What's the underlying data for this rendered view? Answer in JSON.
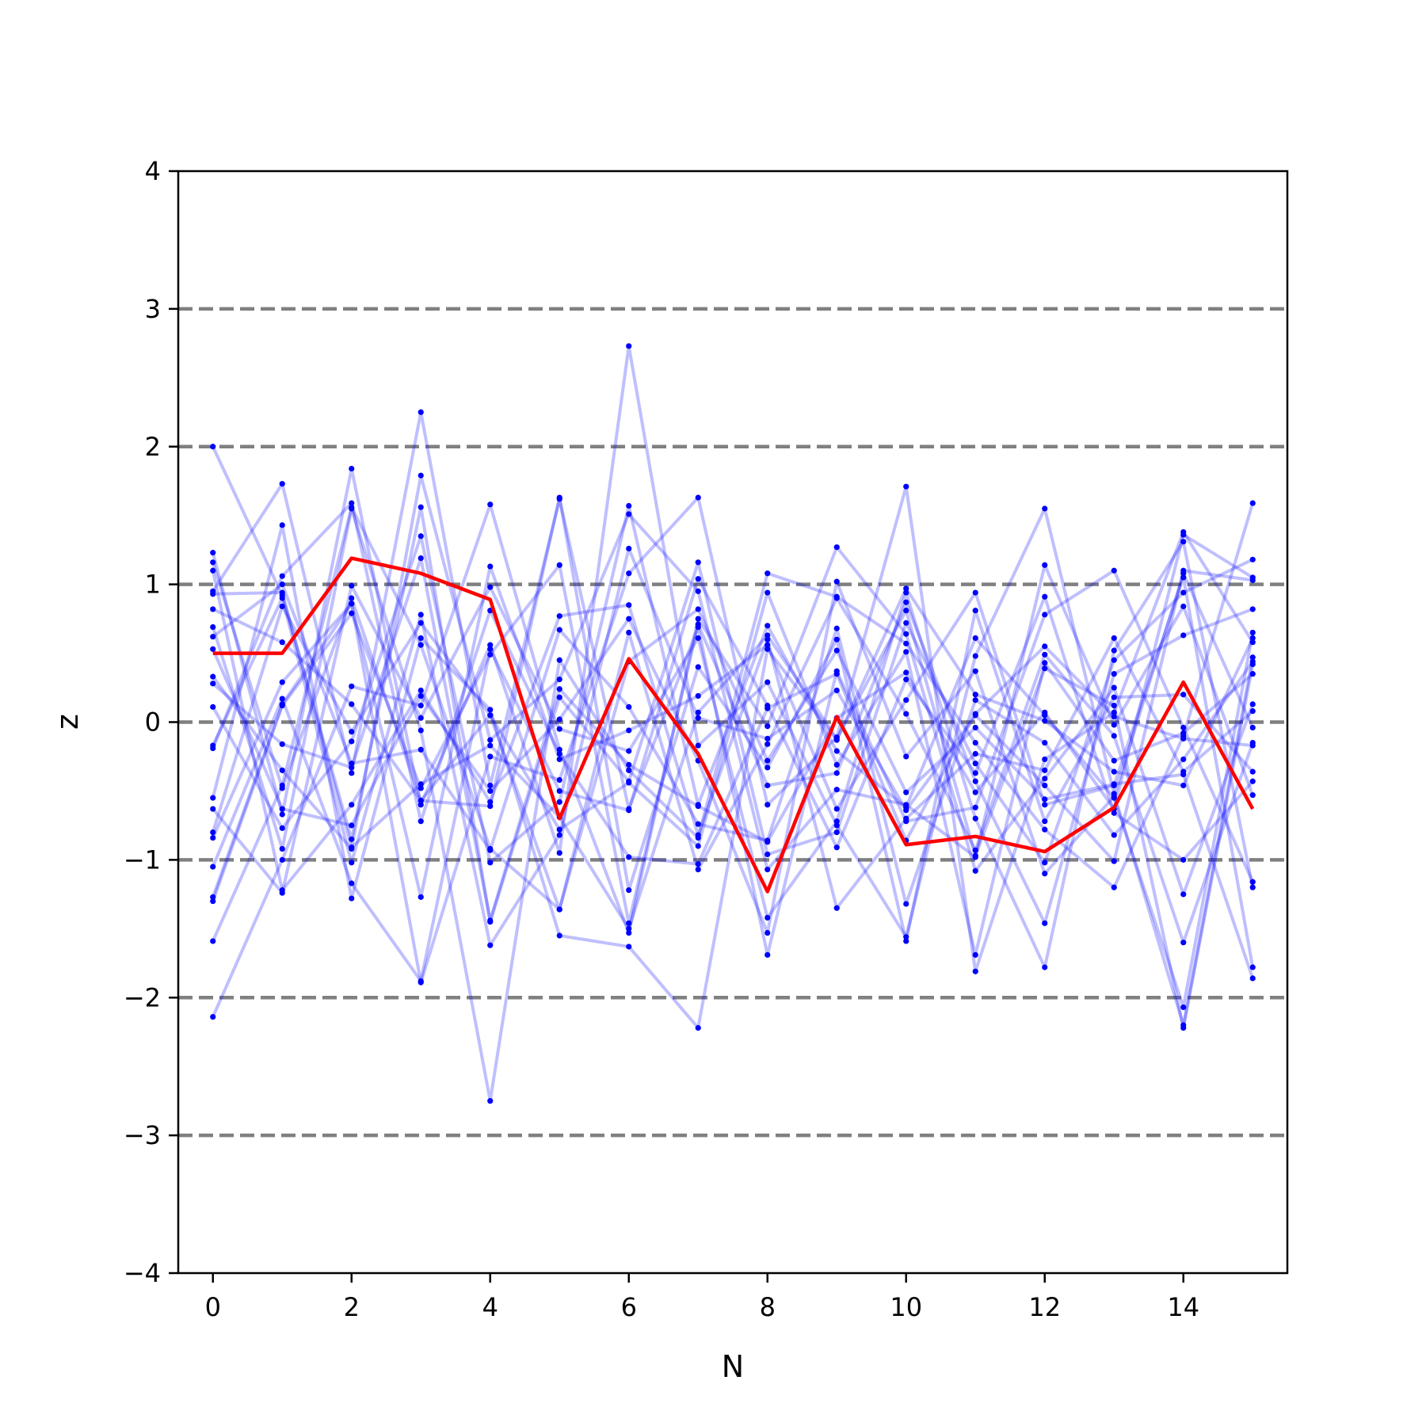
{
  "chart_data": {
    "type": "line",
    "xlabel": "N",
    "ylabel": "z",
    "xlim": [
      -0.5,
      15.5
    ],
    "ylim": [
      -4,
      4
    ],
    "x_ticks": [
      0,
      2,
      4,
      6,
      8,
      10,
      12,
      14
    ],
    "y_ticks": [
      -4,
      -3,
      -2,
      -1,
      0,
      1,
      2,
      3,
      4
    ],
    "y_tick_labels": [
      "−4",
      "−3",
      "−2",
      "−1",
      "0",
      "1",
      "2",
      "3",
      "4"
    ],
    "reference_lines": [
      -3,
      -2,
      -1,
      0,
      1,
      2,
      3
    ],
    "colors": {
      "samples": "#0000ff",
      "highlight": "#ff0000",
      "reference": "#808080"
    },
    "x": [
      0,
      1,
      2,
      3,
      4,
      5,
      6,
      7,
      8,
      9,
      10,
      11,
      12,
      13,
      14,
      15
    ],
    "highlight": [
      0.5,
      0.5,
      1.19,
      1.08,
      0.89,
      -0.7,
      0.46,
      -0.23,
      -1.23,
      0.04,
      -0.89,
      -0.83,
      -0.94,
      -0.62,
      0.29,
      -0.63
    ],
    "series": [
      {
        "values": [
          2.0,
          0.92,
          -0.85,
          1.56,
          -1.45,
          0.18,
          -0.43,
          1.16,
          -0.96,
          -0.8,
          0.72,
          -0.3,
          -1.02,
          0.45,
          0.94,
          1.18
        ]
      },
      {
        "values": [
          1.23,
          -0.67,
          1.84,
          -0.6,
          0.56,
          -0.95,
          2.73,
          -0.17,
          0.29,
          -0.75,
          -1.56,
          0.48,
          1.55,
          -0.52,
          -2.2,
          0.47
        ]
      },
      {
        "values": [
          -2.14,
          -1.0,
          0.26,
          0.12,
          1.58,
          -0.2,
          -1.53,
          0.75,
          -0.03,
          1.27,
          0.64,
          -1.08,
          -0.41,
          0.25,
          -1.25,
          0.13
        ]
      },
      {
        "values": [
          0.95,
          1.73,
          -0.37,
          2.25,
          -0.46,
          1.62,
          -0.63,
          0.69,
          -1.69,
          0.37,
          -0.72,
          -0.62,
          0.78,
          1.1,
          -0.04,
          -1.16
        ]
      },
      {
        "values": [
          -1.27,
          0.13,
          0.86,
          -1.89,
          -0.25,
          -0.42,
          1.08,
          1.63,
          -0.6,
          -0.11,
          1.71,
          -1.81,
          -0.27,
          0.07,
          1.38,
          0.58
        ]
      },
      {
        "values": [
          0.69,
          -0.92,
          1.55,
          -0.06,
          -2.75,
          0.45,
          -0.35,
          -0.84,
          1.08,
          0.91,
          0.57,
          -0.15,
          -0.78,
          -1.2,
          -0.1,
          1.59
        ]
      },
      {
        "values": [
          -0.55,
          1.43,
          -1.28,
          0.61,
          0.09,
          -1.55,
          -1.63,
          -2.22,
          0.53,
          -0.13,
          0.97,
          0.2,
          0.01,
          -0.36,
          -0.46,
          0.61
        ]
      },
      {
        "values": [
          0.33,
          -0.35,
          -0.92,
          1.79,
          -0.13,
          0.31,
          1.51,
          0.95,
          -1.07,
          -0.49,
          -0.6,
          -0.98,
          1.14,
          -0.02,
          0.84,
          -0.53
        ]
      },
      {
        "values": [
          -0.84,
          0.29,
          0.86,
          -1.27,
          1.13,
          -0.27,
          -0.06,
          0.19,
          0.56,
          -0.63,
          0.16,
          0.94,
          -0.6,
          -0.46,
          1.05,
          -1.78
        ]
      },
      {
        "values": [
          1.1,
          -1.22,
          -0.6,
          0.23,
          -0.58,
          0.77,
          0.85,
          -0.82,
          0.6,
          -1.35,
          -0.7,
          -0.23,
          -0.35,
          0.61,
          -0.36,
          0.08
        ]
      },
      {
        "values": [
          -0.17,
          0.9,
          -1.02,
          0.78,
          -1.62,
          -0.82,
          1.26,
          0.03,
          -0.12,
          0.23,
          -0.64,
          0.05,
          -0.46,
          -1.01,
          1.1,
          1.03
        ]
      },
      {
        "values": [
          0.82,
          0.58,
          0.13,
          -0.57,
          0.05,
          -1.36,
          0.65,
          -1.07,
          -0.16,
          0.9,
          0.06,
          -0.93,
          0.49,
          -0.1,
          -1.6,
          -0.15
        ]
      },
      {
        "values": [
          -1.3,
          0.12,
          0.79,
          -0.48,
          0.49,
          1.14,
          -1.46,
          0.71,
          -0.46,
          -0.37,
          0.87,
          -0.43,
          -1.46,
          0.35,
          0.63,
          0.82
        ]
      },
      {
        "values": [
          0.11,
          -0.77,
          -0.14,
          1.35,
          -1.02,
          -0.58,
          1.57,
          -0.6,
          0.7,
          -0.21,
          -0.62,
          0.61,
          0.05,
          -0.55,
          -2.07,
          0.65
        ]
      },
      {
        "values": [
          -0.63,
          -1.24,
          0.99,
          0.03,
          0.98,
          -0.05,
          -0.21,
          0.61,
          -1.42,
          -0.72,
          0.94,
          -0.7,
          -1.78,
          0.52,
          1.31,
          -1.2
        ]
      },
      {
        "values": [
          0.62,
          1.0,
          -0.3,
          -0.2,
          -0.93,
          0.67,
          0.11,
          -0.74,
          -0.86,
          0.68,
          -1.32,
          0.16,
          -0.15,
          -0.82,
          -0.27,
          0.44
        ]
      },
      {
        "values": [
          -1.05,
          0.17,
          -1.17,
          -1.88,
          0.53,
          -0.5,
          -0.64,
          1.04,
          0.12,
          -0.91,
          0.31,
          -0.37,
          0.91,
          -0.66,
          -1.0,
          -0.43
        ]
      },
      {
        "values": [
          1.16,
          -0.48,
          0.9,
          -0.57,
          -0.61,
          1.63,
          -1.22,
          0.4,
          -0.33,
          0.6,
          -1.59,
          0.81,
          -0.72,
          0.18,
          0.2,
          -0.36
        ]
      },
      {
        "values": [
          -0.8,
          0.84,
          -0.07,
          0.72,
          0.05,
          -0.78,
          -0.44,
          -0.9,
          0.94,
          -0.31,
          0.51,
          -1.69,
          0.43,
          -0.28,
          -0.08,
          0.35
        ]
      },
      {
        "values": [
          0.53,
          -0.63,
          -0.75,
          0.19,
          -0.5,
          0.02,
          0.75,
          -0.28,
          -1.53,
          1.02,
          -0.25,
          0.37,
          -1.1,
          -0.54,
          1.08,
          -0.04
        ]
      },
      {
        "values": [
          -0.19,
          1.06,
          1.59,
          -0.72,
          0.81,
          -0.23,
          -0.98,
          -1.03,
          0.1,
          0.35,
          -0.86,
          0.06,
          0.55,
          0.04,
          -0.12,
          -0.17
        ]
      },
      {
        "values": [
          0.28,
          -0.16,
          -0.33,
          1.19,
          -1.44,
          0.24,
          -0.31,
          -0.61,
          -0.87,
          0.03,
          0.36,
          -0.51,
          0.07,
          -0.63,
          1.36,
          1.05
        ]
      },
      {
        "values": [
          -1.59,
          -0.46,
          1.56,
          0.56,
          -0.92,
          -1.36,
          0.44,
          0.82,
          -0.28,
          0.52,
          -0.51,
          -0.04,
          -0.56,
          -0.45,
          -0.38,
          -1.86
        ]
      },
      {
        "values": [
          0.93,
          0.94,
          -0.91,
          -0.45,
          -0.17,
          -0.69,
          -1.5,
          0.07,
          0.63,
          -0.12,
          0.81,
          -0.97,
          0.39,
          0.12,
          -2.22,
          0.42
        ]
      }
    ]
  }
}
